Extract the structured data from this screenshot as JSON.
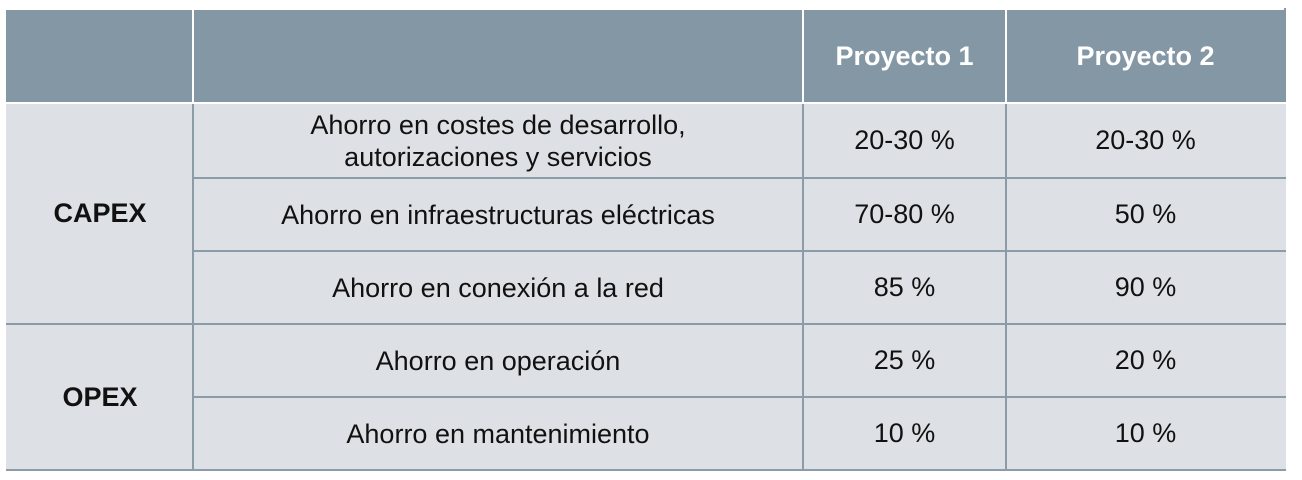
{
  "table": {
    "header": {
      "group": "",
      "concept": "",
      "project1": "Proyecto 1",
      "project2": "Proyecto 2"
    },
    "groups": [
      {
        "name": "CAPEX",
        "rows": [
          {
            "concept": "Ahorro en costes de desarrollo, autorizaciones y servicios",
            "project1": "20-30 %",
            "project2": "20-30 %"
          },
          {
            "concept": "Ahorro en infraestructuras eléctricas",
            "project1": "70-80 %",
            "project2": "50 %"
          },
          {
            "concept": "Ahorro en conexión a la red",
            "project1": "85 %",
            "project2": "90 %"
          }
        ]
      },
      {
        "name": "OPEX",
        "rows": [
          {
            "concept": "Ahorro en operación",
            "project1": "25 %",
            "project2": "20 %"
          },
          {
            "concept": "Ahorro en mantenimiento",
            "project1": "10 %",
            "project2": "10 %"
          }
        ]
      }
    ]
  }
}
